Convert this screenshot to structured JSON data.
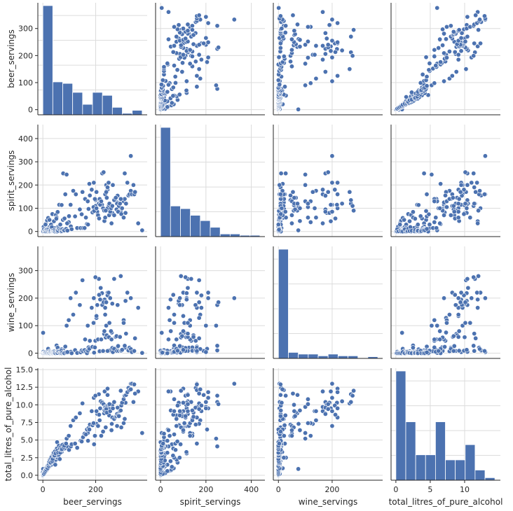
{
  "chart_data": {
    "type": "pairplot",
    "variables": [
      "beer_servings",
      "spirit_servings",
      "wine_servings",
      "total_litres_of_pure_alcohol"
    ],
    "point_color": "#4c72b0",
    "bar_color": "#4c72b0",
    "grid": true,
    "axes": {
      "beer_servings": {
        "lim": [
          -19,
          395
        ],
        "ticks": [
          0,
          200
        ],
        "tick_labels": [
          "0",
          "200"
        ]
      },
      "spirit_servings": {
        "lim": [
          -22,
          460
        ],
        "ticks": [
          0,
          200,
          400
        ],
        "tick_labels": [
          "0",
          "200",
          "400"
        ]
      },
      "wine_servings": {
        "lim": [
          -19,
          388
        ],
        "ticks": [
          0,
          200
        ],
        "tick_labels": [
          "0",
          "200"
        ]
      },
      "total_litres_of_pure_alcohol": {
        "lim": [
          -0.7,
          15.2
        ],
        "ticks": [
          0,
          5,
          10
        ],
        "tick_labels": [
          "0",
          "5",
          "10"
        ]
      }
    },
    "row_ticks": {
      "beer_servings": {
        "lim": [
          -19,
          395
        ],
        "ticks": [
          0,
          100,
          200,
          300
        ],
        "tick_labels": [
          "0",
          "100",
          "200",
          "300"
        ]
      },
      "spirit_servings": {
        "lim": [
          -22,
          460
        ],
        "ticks": [
          0,
          100,
          200,
          300,
          400
        ],
        "tick_labels": [
          "0",
          "100",
          "200",
          "300",
          "400"
        ]
      },
      "wine_servings": {
        "lim": [
          -19,
          388
        ],
        "ticks": [
          0,
          100,
          200,
          300
        ],
        "tick_labels": [
          "0",
          "100",
          "200",
          "300"
        ]
      },
      "total_litres_of_pure_alcohol": {
        "lim": [
          -0.7,
          15.2
        ],
        "ticks": [
          0,
          2.5,
          5,
          7.5,
          10,
          12.5,
          15
        ],
        "tick_labels": [
          "0.0",
          "2.5",
          "5.0",
          "7.5",
          "10.0",
          "12.5",
          "15.0"
        ]
      }
    },
    "histograms": {
      "beer_servings": {
        "bins": [
          0,
          37.6,
          75.2,
          112.8,
          150.4,
          188,
          225.6,
          263.2,
          300.8,
          338.4,
          376
        ],
        "counts": [
          73,
          22,
          21,
          15,
          7,
          15,
          13,
          5,
          1,
          3
        ]
      },
      "spirit_servings": {
        "bins": [
          0,
          43.8,
          87.6,
          131.4,
          175.2,
          219,
          262.8,
          306.6,
          350.4,
          394.2,
          438
        ],
        "counts": [
          82,
          23,
          21,
          16,
          12,
          7,
          2,
          2,
          1,
          1
        ]
      },
      "wine_servings": {
        "bins": [
          0,
          37,
          74,
          111,
          148,
          185,
          222,
          259,
          296,
          333,
          370
        ],
        "counts": [
          127,
          7,
          5,
          5,
          3,
          5,
          3,
          3,
          0,
          2
        ]
      },
      "total_litres_of_pure_alcohol": {
        "bins": [
          0,
          1.44,
          2.88,
          4.32,
          5.76,
          7.2,
          8.64,
          10.08,
          11.52,
          12.96,
          14.4
        ],
        "counts": [
          43,
          23,
          10,
          10,
          23,
          8,
          8,
          14,
          4,
          1
        ]
      }
    },
    "points": {
      "beer_servings": [
        0,
        0,
        0,
        0,
        0,
        1,
        1,
        2,
        3,
        5,
        5,
        6,
        8,
        9,
        12,
        15,
        16,
        20,
        21,
        25,
        26,
        31,
        32,
        36,
        42,
        45,
        49,
        52,
        56,
        62,
        71,
        77,
        85,
        90,
        98,
        105,
        115,
        125,
        140,
        150,
        160,
        170,
        185,
        193,
        199,
        212,
        225,
        234,
        245,
        263,
        281,
        295,
        313,
        333,
        343,
        361,
        376,
        199,
        203,
        206,
        219,
        224,
        230,
        236,
        240,
        245,
        249,
        251,
        261,
        270,
        283,
        297,
        306,
        310,
        20,
        47,
        51,
        57,
        60,
        64,
        76,
        82,
        92,
        99,
        106,
        109,
        122,
        130,
        143,
        147,
        152,
        158,
        163,
        167,
        171,
        173,
        176,
        178,
        188,
        192,
        194,
        197,
        203,
        209,
        213,
        215,
        217,
        221,
        228,
        232,
        233,
        236,
        238,
        240,
        242,
        245,
        250,
        252,
        255,
        258,
        260,
        263,
        265,
        270,
        276,
        279,
        281,
        285,
        288,
        292,
        295,
        297,
        300,
        306,
        310,
        315,
        320,
        324,
        328,
        333,
        337,
        346,
        349,
        1,
        2,
        3,
        4,
        6,
        7,
        8,
        10,
        11,
        13,
        14,
        17,
        18,
        19,
        22,
        23,
        24,
        27,
        28,
        29,
        30,
        33,
        34,
        35,
        37,
        38,
        40,
        41,
        43,
        44,
        46,
        48,
        53,
        54,
        55,
        58,
        61,
        65,
        66,
        69,
        70,
        72,
        74,
        79,
        81,
        88,
        93
      ],
      "spirit_servings": [
        0,
        0,
        0,
        0,
        2,
        3,
        5,
        6,
        11,
        15,
        16,
        22,
        18,
        25,
        35,
        46,
        48,
        58,
        15,
        50,
        20,
        30,
        12,
        75,
        44,
        6,
        71,
        60,
        84,
        115,
        114,
        250,
        160,
        245,
        40,
        115,
        175,
        160,
        95,
        170,
        140,
        130,
        180,
        210,
        135,
        120,
        250,
        44,
        100,
        80,
        125,
        90,
        80,
        325,
        200,
        35,
        5,
        110,
        170,
        85,
        120,
        115,
        255,
        160,
        200,
        180,
        210,
        70,
        105,
        135,
        154,
        100,
        130,
        140,
        10,
        15,
        55,
        20,
        18,
        12,
        50,
        56,
        35,
        66,
        22,
        10,
        65,
        15,
        15,
        74,
        15,
        15,
        60,
        32,
        30,
        97,
        205,
        155,
        82,
        105,
        88,
        140,
        100,
        70,
        56,
        140,
        115,
        130,
        100,
        90,
        45,
        60,
        90,
        170,
        145,
        190,
        113,
        120,
        85,
        100,
        35,
        110,
        200,
        70,
        145,
        95,
        120,
        85,
        110,
        120,
        140,
        75,
        100,
        60,
        250,
        120,
        210,
        155,
        160,
        175,
        160,
        160,
        170,
        2,
        0,
        20,
        10,
        0,
        1,
        5,
        30,
        4,
        0,
        8,
        9,
        0,
        0,
        10,
        0,
        2,
        0,
        2,
        13,
        5,
        15,
        19,
        2,
        3,
        4,
        0,
        1,
        1,
        6,
        0,
        3,
        2,
        0,
        4,
        3,
        12,
        8,
        30,
        10,
        0,
        2,
        10,
        5,
        5,
        11,
        4,
        8
      ],
      "wine_servings": [
        0,
        0,
        0,
        0,
        0,
        0,
        74,
        1,
        1,
        2,
        4,
        2,
        1,
        1,
        2,
        4,
        1,
        16,
        0,
        7,
        4,
        5,
        2,
        4,
        7,
        3,
        2,
        28,
        20,
        8,
        14,
        10,
        24,
        100,
        120,
        200,
        140,
        220,
        175,
        265,
        50,
        100,
        165,
        200,
        45,
        270,
        175,
        195,
        220,
        180,
        20,
        280,
        190,
        200,
        5,
        165,
        1,
        276,
        128,
        175,
        237,
        218,
        185,
        165,
        100,
        210,
        220,
        10,
        75,
        270,
        175,
        8,
        120,
        20,
        0,
        0,
        5,
        0,
        1,
        0,
        2,
        3,
        2,
        4,
        5,
        0,
        11,
        1,
        3,
        10,
        7,
        11,
        5,
        0,
        9,
        21,
        16,
        45,
        23,
        110,
        2,
        21,
        135,
        50,
        212,
        7,
        195,
        50,
        8,
        70,
        80,
        140,
        57,
        185,
        65,
        8,
        58,
        110,
        200,
        80,
        50,
        19,
        4,
        16,
        59,
        62,
        8,
        26,
        8,
        59,
        9,
        9,
        12,
        110,
        27,
        71,
        220,
        10,
        20,
        15,
        4,
        8,
        54,
        0,
        5,
        1,
        0,
        1,
        0,
        2,
        0,
        3,
        0,
        1,
        0,
        4,
        1,
        0,
        2,
        1,
        0,
        5,
        2,
        3,
        3,
        0,
        1,
        0,
        2,
        4,
        1,
        0,
        1,
        3,
        0,
        2,
        0,
        1,
        6,
        5,
        2,
        0,
        1,
        9,
        0,
        3,
        0,
        0,
        3,
        4,
        2
      ],
      "total_litres_of_pure_alcohol": [
        0,
        0,
        0,
        0.1,
        0.4,
        0.1,
        0.9,
        0.1,
        0.2,
        0.2,
        0.3,
        0.3,
        0.4,
        0.5,
        0.6,
        0.7,
        0.8,
        1.0,
        1.1,
        1.2,
        1.3,
        1.5,
        1.5,
        1.8,
        2.0,
        2.0,
        2.2,
        2.5,
        2.5,
        3.1,
        3.3,
        4.1,
        4.5,
        5.2,
        5.6,
        7.0,
        7.8,
        8.2,
        8.8,
        10.2,
        5.9,
        6.0,
        9.1,
        11.0,
        5.6,
        11.5,
        10.4,
        11.9,
        12.3,
        10.0,
        7.0,
        12.0,
        10.3,
        13.0,
        10.4,
        11.9,
        6.0,
        11.3,
        7.3,
        8.7,
        10.5,
        10.3,
        10.1,
        9.7,
        9.7,
        9.9,
        9.5,
        8.5,
        7.3,
        10.4,
        9.6,
        6.8,
        7.4,
        8.0,
        1.3,
        1.5,
        2.8,
        3.1,
        2.9,
        2.3,
        4.4,
        3.8,
        4.1,
        3.6,
        4.1,
        4.4,
        4.5,
        3.9,
        4.9,
        4.8,
        5.4,
        5.9,
        5.8,
        6.5,
        4.9,
        6.7,
        6.5,
        7.2,
        7.1,
        7.4,
        4.4,
        5.6,
        9.1,
        7.0,
        8.6,
        7.8,
        9.5,
        5.6,
        6.2,
        8.8,
        9.2,
        9.1,
        6.8,
        9.4,
        8.9,
        11.4,
        10.0,
        10.1,
        9.1,
        6.4,
        6.4,
        8.2,
        9.5,
        8.0,
        8.3,
        8.4,
        8.7,
        8.5,
        8.4,
        9.1,
        9.2,
        9.9,
        10.3,
        10.8,
        11.3,
        11.4,
        11.8,
        12.4,
        12.1,
        12.2,
        13.0,
        12.9,
        11.6,
        0.1,
        0.2,
        0.3,
        0.2,
        0.5,
        0.4,
        0.7,
        0.6,
        0.9,
        0.8,
        1.1,
        1.2,
        1.0,
        1.4,
        1.3,
        1.6,
        1.9,
        2.2,
        1.7,
        1.8,
        2.4,
        2.6,
        2.1,
        2.0,
        2.3,
        2.9,
        3.0,
        3.2,
        2.7,
        2.8,
        3.4,
        3.1,
        3.8,
        4.7,
        3.5,
        3.2,
        4.2,
        3.8,
        3.2,
        4.1,
        3.6,
        3.7,
        4.3,
        4.0,
        4.2,
        4.5
      ]
    }
  }
}
